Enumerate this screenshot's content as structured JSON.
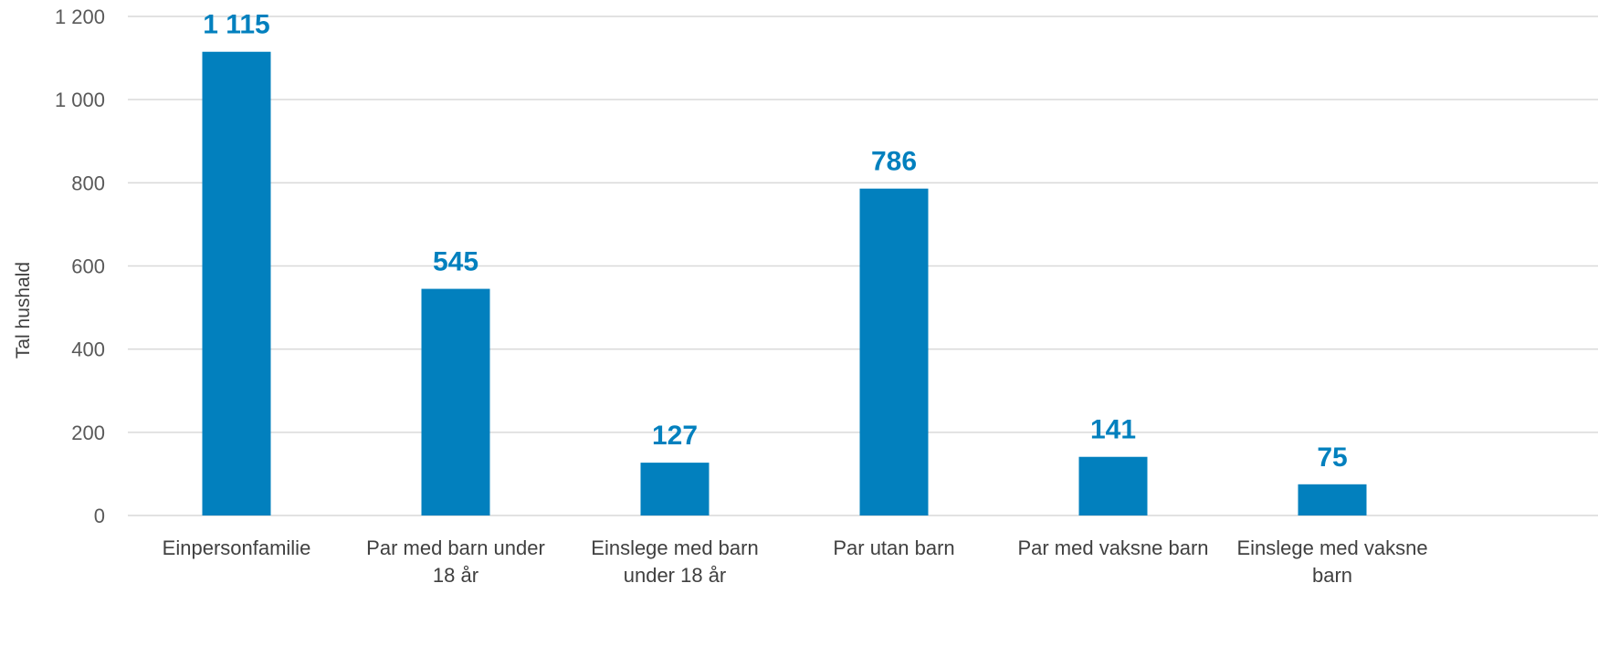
{
  "chart_data": {
    "type": "bar",
    "title": "",
    "xlabel": "",
    "ylabel": "Tal hushald",
    "ylim": [
      0,
      1200
    ],
    "yticks": [
      0,
      200,
      400,
      600,
      800,
      1000,
      1200
    ],
    "ytick_labels": [
      "0",
      "200",
      "400",
      "600",
      "800",
      "1 000",
      "1 200"
    ],
    "grid": true,
    "legend": "none",
    "categories": [
      [
        "Einpersonfamilie"
      ],
      [
        "Par med barn under",
        "18 år"
      ],
      [
        "Einslege med barn",
        "under 18 år"
      ],
      [
        "Par utan barn"
      ],
      [
        "Par med vaksne barn"
      ],
      [
        "Einslege med vaksne",
        "barn"
      ]
    ],
    "values": [
      1115,
      545,
      127,
      786,
      141,
      75
    ],
    "value_labels": [
      "1 115",
      "545",
      "127",
      "786",
      "141",
      "75"
    ],
    "colors": {
      "bar": "#0280be",
      "data_label": "#0280be",
      "grid": "#d9d9d9"
    }
  }
}
